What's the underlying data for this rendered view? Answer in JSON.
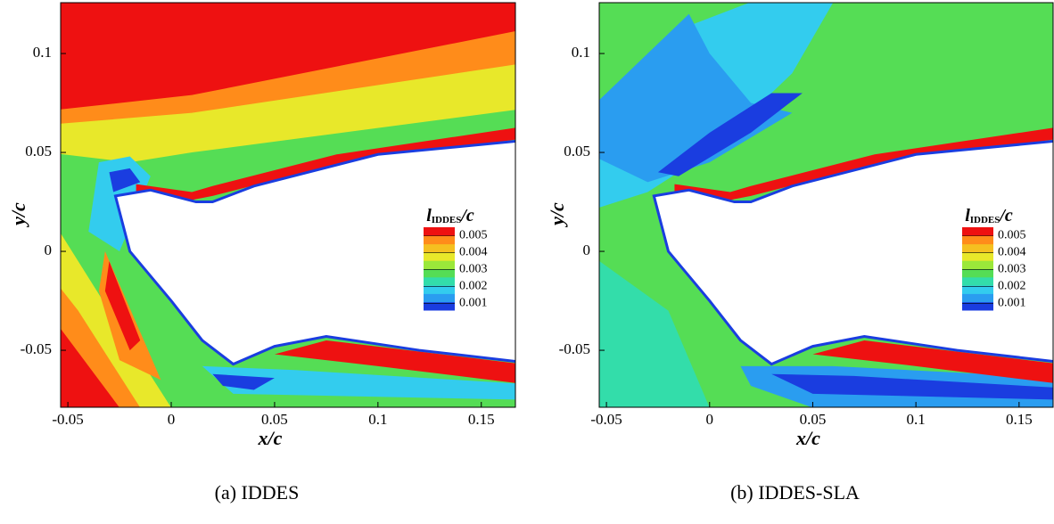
{
  "panels": [
    {
      "caption": "(a) IDDES",
      "xlabel": "x/c",
      "ylabel": "y/c",
      "xlim": [
        -0.0535,
        0.1665
      ],
      "ylim": [
        -0.0788,
        0.1257
      ],
      "xticks": [
        -0.05,
        0,
        0.05,
        0.1,
        0.15
      ],
      "yticks": [
        -0.05,
        0,
        0.05,
        0.1
      ],
      "colorbar": {
        "symbol": "l",
        "subscript": "IDDES",
        "suffix": "/c",
        "clim": [
          0.0006,
          0.0055
        ],
        "ticks": [
          0.001,
          0.002,
          0.003,
          0.004,
          0.005
        ]
      }
    },
    {
      "caption": "(b) IDDES-SLA",
      "xlabel": "x/c",
      "ylabel": "y/c",
      "xlim": [
        -0.0535,
        0.1665
      ],
      "ylim": [
        -0.0788,
        0.1257
      ],
      "xticks": [
        -0.05,
        0,
        0.05,
        0.1,
        0.15
      ],
      "yticks": [
        -0.05,
        0,
        0.05,
        0.1
      ],
      "colorbar": {
        "symbol": "l",
        "subscript": "IDDES",
        "suffix": "/c",
        "clim": [
          0.0006,
          0.0055
        ],
        "ticks": [
          0.001,
          0.002,
          0.003,
          0.004,
          0.005
        ]
      }
    }
  ]
}
